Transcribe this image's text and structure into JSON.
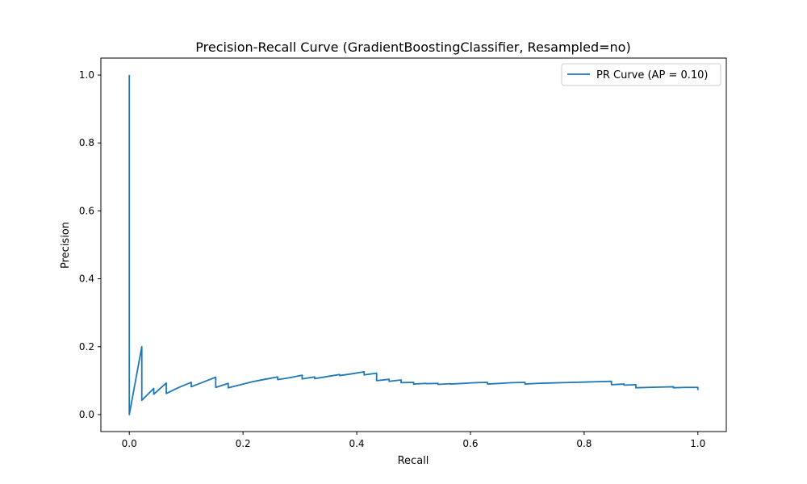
{
  "chart_data": {
    "type": "line",
    "title": "Precision-Recall Curve (GradientBoostingClassifier, Resampled=no)",
    "xlabel": "Recall",
    "ylabel": "Precision",
    "xlim": [
      -0.05,
      1.05
    ],
    "ylim": [
      -0.05,
      1.05
    ],
    "xticks": [
      0.0,
      0.2,
      0.4,
      0.6,
      0.8,
      1.0
    ],
    "xtick_labels": [
      "0.0",
      "0.2",
      "0.4",
      "0.6",
      "0.8",
      "1.0"
    ],
    "yticks": [
      0.0,
      0.2,
      0.4,
      0.6,
      0.8,
      1.0
    ],
    "ytick_labels": [
      "0.0",
      "0.2",
      "0.4",
      "0.6",
      "0.8",
      "1.0"
    ],
    "grid": false,
    "legend_position": "top-right",
    "series": [
      {
        "name": "PR Curve (AP = 0.10)",
        "color": "#1f77b4",
        "x": [
          0.0,
          0.0,
          0.0,
          0.022,
          0.022,
          0.043,
          0.043,
          0.065,
          0.065,
          0.087,
          0.109,
          0.109,
          0.152,
          0.152,
          0.174,
          0.174,
          0.196,
          0.217,
          0.239,
          0.261,
          0.261,
          0.283,
          0.304,
          0.304,
          0.326,
          0.326,
          0.348,
          0.37,
          0.37,
          0.391,
          0.413,
          0.413,
          0.435,
          0.435,
          0.457,
          0.457,
          0.478,
          0.478,
          0.5,
          0.5,
          0.522,
          0.522,
          0.543,
          0.543,
          0.565,
          0.565,
          0.587,
          0.609,
          0.63,
          0.63,
          0.652,
          0.674,
          0.696,
          0.696,
          0.717,
          0.739,
          0.761,
          0.783,
          0.804,
          0.826,
          0.848,
          0.848,
          0.87,
          0.87,
          0.891,
          0.891,
          0.913,
          0.935,
          0.957,
          0.957,
          0.978,
          0.978,
          1.0,
          1.0
        ],
        "y": [
          1.0,
          0.0,
          0.0,
          0.2,
          0.042,
          0.077,
          0.06,
          0.093,
          0.062,
          0.08,
          0.095,
          0.082,
          0.11,
          0.08,
          0.092,
          0.079,
          0.088,
          0.097,
          0.104,
          0.111,
          0.103,
          0.109,
          0.116,
          0.105,
          0.111,
          0.106,
          0.112,
          0.118,
          0.115,
          0.12,
          0.126,
          0.117,
          0.122,
          0.1,
          0.104,
          0.098,
          0.102,
          0.094,
          0.095,
          0.09,
          0.092,
          0.091,
          0.092,
          0.089,
          0.091,
          0.09,
          0.092,
          0.094,
          0.095,
          0.09,
          0.092,
          0.094,
          0.095,
          0.09,
          0.092,
          0.093,
          0.094,
          0.095,
          0.096,
          0.097,
          0.098,
          0.088,
          0.09,
          0.087,
          0.088,
          0.079,
          0.08,
          0.081,
          0.082,
          0.079,
          0.08,
          0.08,
          0.08,
          0.072
        ]
      }
    ]
  }
}
